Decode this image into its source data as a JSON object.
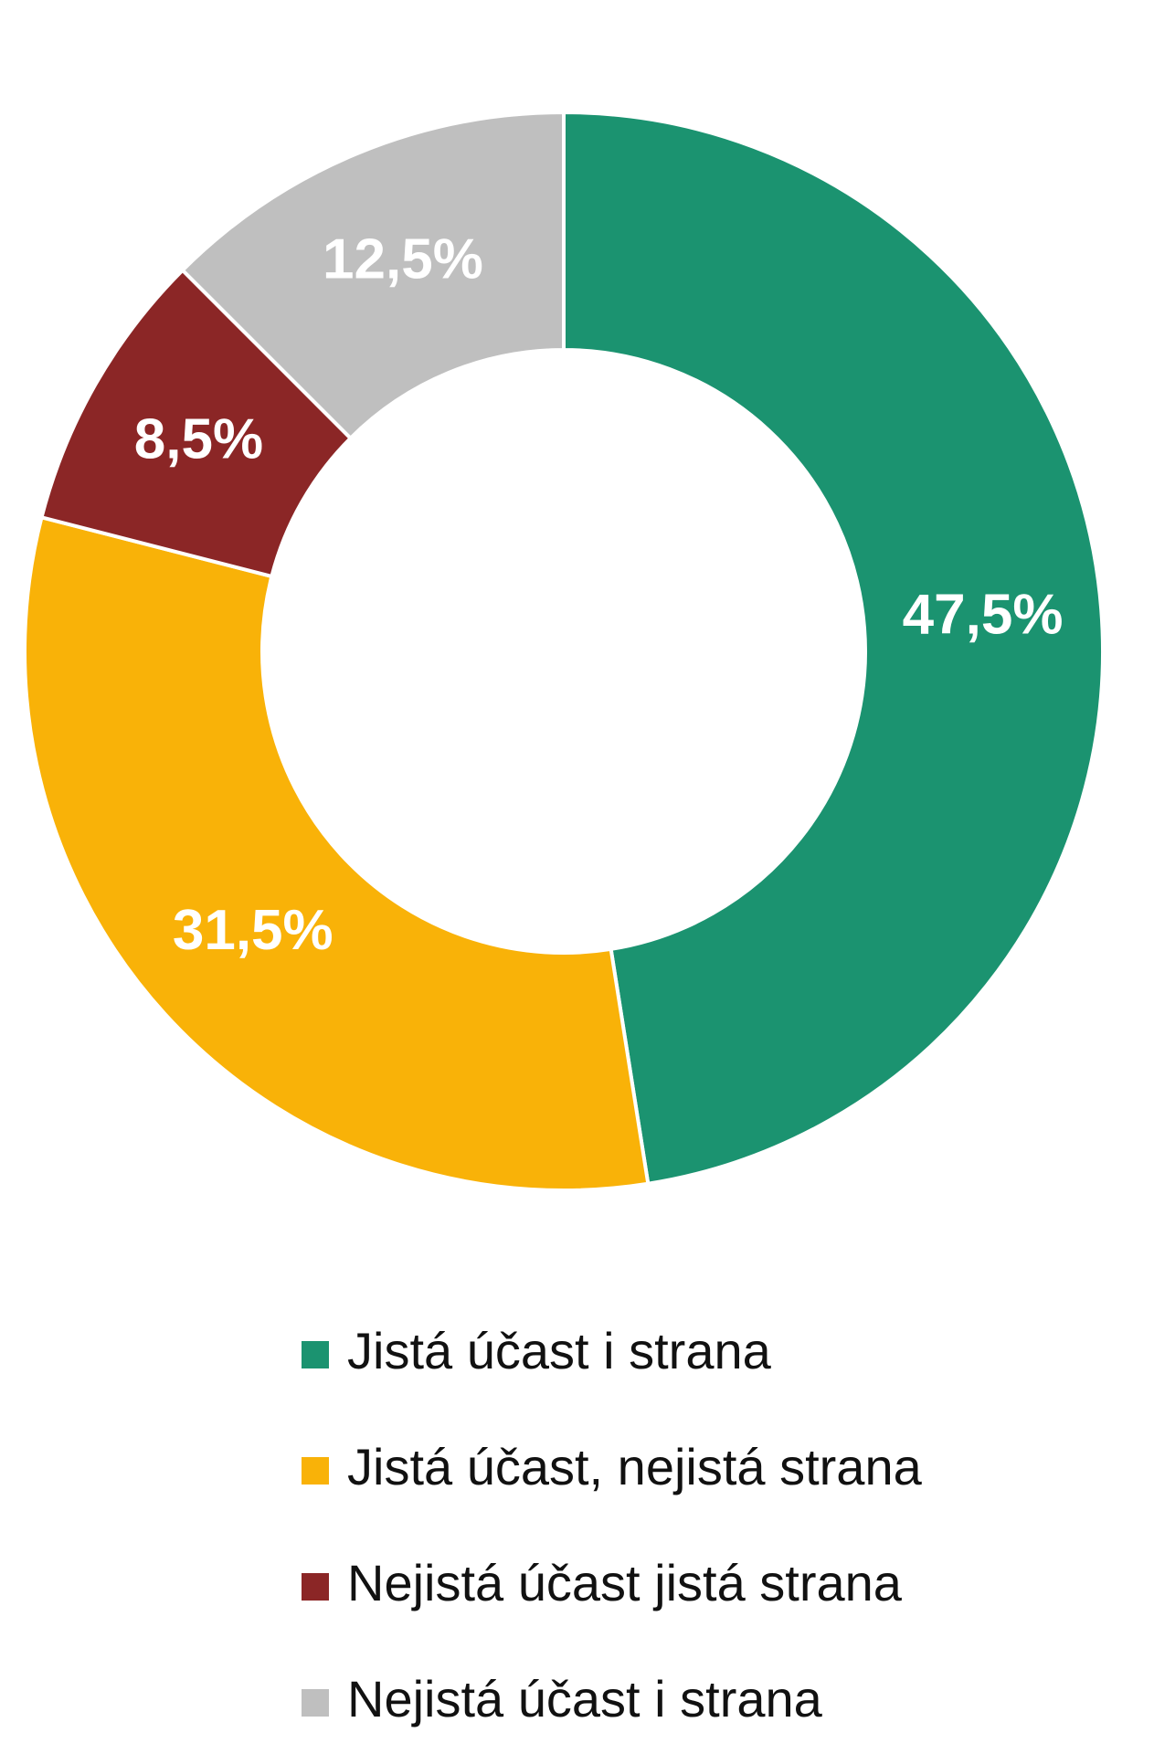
{
  "chart_data": {
    "type": "donut",
    "categories": [
      "Jistá účast i strana",
      "Jistá účast, nejistá strana",
      "Nejistá účast jistá strana",
      "Nejistá účast i strana"
    ],
    "values": [
      47.5,
      31.5,
      8.5,
      12.5
    ],
    "value_labels": [
      "47,5%",
      "31,5%",
      "8,5%",
      "12,5%"
    ],
    "colors": [
      "#1b9370",
      "#f9b208",
      "#8b2626",
      "#bfbfbf"
    ],
    "legend": "bottom"
  }
}
